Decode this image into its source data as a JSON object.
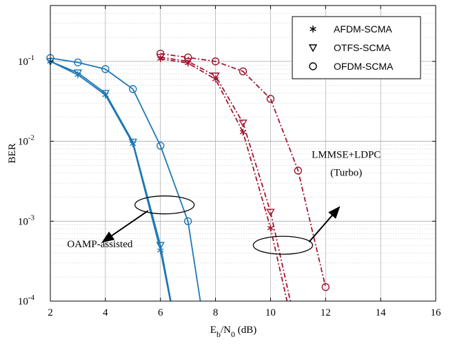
{
  "chart_data": {
    "type": "line",
    "ylabel": "BER",
    "xlabel": {
      "E": "E",
      "b": "b",
      "slash": "/N",
      "zero": "0",
      "unit": " (dB)"
    },
    "xlim": [
      2,
      16
    ],
    "ylim": [
      0.0001,
      0.5
    ],
    "yscale": "log",
    "grid": true,
    "legend_position": "top-right",
    "xticks": [
      2,
      4,
      6,
      8,
      10,
      12,
      14,
      16
    ],
    "xtick_labels": [
      "2",
      "4",
      "6",
      "8",
      "10",
      "12",
      "14",
      "16"
    ],
    "yticks": [
      {
        "value": 0.1,
        "base": "10",
        "exp": "-1"
      },
      {
        "value": 0.01,
        "base": "10",
        "exp": "-2"
      },
      {
        "value": 0.001,
        "base": "10",
        "exp": "-3"
      },
      {
        "value": 0.0001,
        "base": "10",
        "exp": "-4"
      }
    ],
    "legend": [
      {
        "label": "AFDM-SCMA",
        "marker": "asterisk"
      },
      {
        "label": "OTFS-SCMA",
        "marker": "triangle-down"
      },
      {
        "label": "OFDM-SCMA",
        "marker": "circle"
      }
    ],
    "colors": {
      "oamp": "#1f77b4",
      "lmmse": "#a2142f"
    },
    "series": [
      {
        "group": "OAMP-assisted",
        "marker": "asterisk",
        "linestyle": "solid",
        "color": "#1f77b4",
        "x": [
          2,
          3,
          4,
          5,
          6,
          6.36
        ],
        "y": [
          0.1,
          0.068,
          0.038,
          0.0093,
          0.00043,
          0.0001
        ]
      },
      {
        "group": "OAMP-assisted",
        "marker": "triangle-down",
        "linestyle": "solid",
        "color": "#1f77b4",
        "x": [
          2,
          3,
          4,
          5,
          6,
          6.38
        ],
        "y": [
          0.1,
          0.072,
          0.04,
          0.0098,
          0.0005,
          0.0001
        ]
      },
      {
        "group": "OAMP-assisted",
        "marker": "circle",
        "linestyle": "solid",
        "color": "#1f77b4",
        "x": [
          2,
          3,
          4,
          5,
          6,
          7,
          7.45
        ],
        "y": [
          0.11,
          0.097,
          0.08,
          0.045,
          0.0088,
          0.001,
          0.0001
        ]
      },
      {
        "group": "LMMSE+LDPC (Turbo)",
        "marker": "asterisk",
        "linestyle": "dashdot",
        "color": "#a2142f",
        "x": [
          6,
          7,
          8,
          9,
          10,
          10.6
        ],
        "y": [
          0.108,
          0.095,
          0.06,
          0.013,
          0.00082,
          0.0001
        ]
      },
      {
        "group": "LMMSE+LDPC (Turbo)",
        "marker": "triangle-down",
        "linestyle": "dashdot",
        "color": "#a2142f",
        "x": [
          6,
          7,
          8,
          9,
          10,
          10.72
        ],
        "y": [
          0.113,
          0.1,
          0.066,
          0.017,
          0.0013,
          0.0001
        ]
      },
      {
        "group": "LMMSE+LDPC (Turbo)",
        "marker": "circle",
        "linestyle": "dashdot",
        "color": "#a2142f",
        "x": [
          6,
          7,
          8,
          9,
          10,
          11,
          12
        ],
        "y": [
          0.125,
          0.112,
          0.1,
          0.075,
          0.034,
          0.0043,
          0.00015
        ]
      }
    ],
    "annotations": [
      {
        "lines": [
          "OAMP-assisted"
        ],
        "text_x": 3.8,
        "text_y": 0.00047,
        "ellipse_x": 6.15,
        "ellipse_y": 0.0016,
        "arrow_from": [
          5.55,
          0.00135
        ],
        "arrow_to": [
          3.9,
          0.00055
        ]
      },
      {
        "lines": [
          "LMMSE+LDPC",
          "(Turbo)"
        ],
        "text_x": 12.75,
        "text_y": 0.0062,
        "ellipse_x": 10.45,
        "ellipse_y": 0.0005,
        "arrow_from": [
          11.4,
          0.00055
        ],
        "arrow_to": [
          12.5,
          0.0015
        ]
      }
    ]
  }
}
